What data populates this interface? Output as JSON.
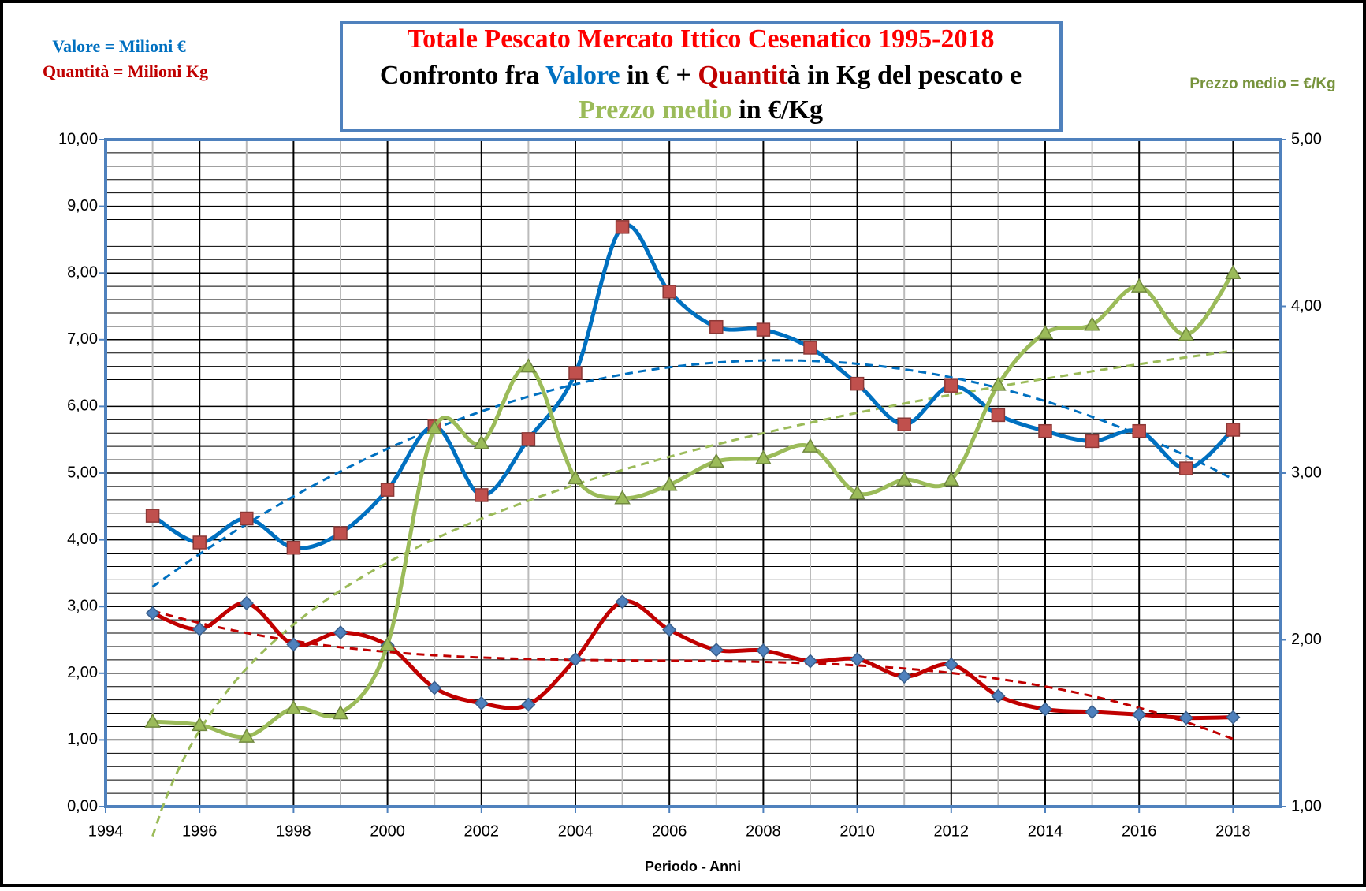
{
  "chart_data": {
    "type": "line",
    "title_lines": [
      [
        {
          "text": "Totale Pescato Mercato Ittico Cesenatico 1995-2018",
          "color": "#ff0000"
        }
      ],
      [
        {
          "text": "Confronto fra ",
          "color": "#000000"
        },
        {
          "text": "Valore",
          "color": "#0070c0"
        },
        {
          "text": " in € + ",
          "color": "#000000"
        },
        {
          "text": "Quantit",
          "color": "#c00000"
        },
        {
          "text": "à in Kg del pescato e",
          "color": "#000000"
        }
      ],
      [
        {
          "text": "Prezzo medio",
          "color": "#9bbb59"
        },
        {
          "text": " in €/Kg",
          "color": "#000000"
        }
      ]
    ],
    "annotations": [
      {
        "text": "Valore = Milioni €",
        "color": "#0070c0"
      },
      {
        "text": "Quantità = Milioni Kg",
        "color": "#c00000"
      },
      {
        "text": "Prezzo medio = €/Kg",
        "color": "#77933c"
      }
    ],
    "x_label": "Periodo - Anni",
    "x": [
      1995,
      1996,
      1997,
      1998,
      1999,
      2000,
      2001,
      2002,
      2003,
      2004,
      2005,
      2006,
      2007,
      2008,
      2009,
      2010,
      2011,
      2012,
      2013,
      2014,
      2015,
      2016,
      2017,
      2018
    ],
    "xlim": [
      1994,
      2019
    ],
    "xticks": [
      1994,
      1996,
      1998,
      2000,
      2002,
      2004,
      2006,
      2008,
      2010,
      2012,
      2014,
      2016,
      2018
    ],
    "ylim": [
      0,
      10
    ],
    "yticks": [
      {
        "value": 0,
        "label": "0,00"
      },
      {
        "value": 1,
        "label": "1,00"
      },
      {
        "value": 2,
        "label": "2,00"
      },
      {
        "value": 3,
        "label": "3,00"
      },
      {
        "value": 4,
        "label": "4,00"
      },
      {
        "value": 5,
        "label": "5,00"
      },
      {
        "value": 6,
        "label": "6,00"
      },
      {
        "value": 7,
        "label": "7,00"
      },
      {
        "value": 8,
        "label": "8,00"
      },
      {
        "value": 9,
        "label": "9,00"
      },
      {
        "value": 10,
        "label": "10,00"
      }
    ],
    "y2lim": [
      1,
      5
    ],
    "y2ticks": [
      {
        "value": 1,
        "label": "1,00"
      },
      {
        "value": 2,
        "label": "2,00"
      },
      {
        "value": 3,
        "label": "3,00"
      },
      {
        "value": 4,
        "label": "4,00"
      },
      {
        "value": 5,
        "label": "5,00"
      }
    ],
    "grid": true,
    "series": [
      {
        "color": "#0070c0",
        "marker": "square",
        "marker_color": "#c0504d",
        "trendline": "poly2",
        "values": [
          4.36,
          3.96,
          4.32,
          3.88,
          4.1,
          4.75,
          5.7,
          4.67,
          5.51,
          6.5,
          8.69,
          7.72,
          7.19,
          7.15,
          6.88,
          6.34,
          5.73,
          6.31,
          5.87,
          5.63,
          5.48,
          5.63,
          5.07,
          5.65
        ]
      },
      {
        "color": "#c00000",
        "marker": "diamond",
        "marker_color": "#4f81bd",
        "trendline": "poly3",
        "values": [
          2.9,
          2.66,
          3.05,
          2.43,
          2.61,
          2.42,
          1.78,
          1.55,
          1.53,
          2.21,
          3.07,
          2.65,
          2.35,
          2.34,
          2.18,
          2.21,
          1.95,
          2.13,
          1.66,
          1.46,
          1.42,
          1.38,
          1.33,
          1.34
        ]
      },
      {
        "color": "#9bbb59",
        "marker": "triangle",
        "marker_color": "#9bbb59",
        "trendline": "log",
        "axis": "y2",
        "values": [
          1.51,
          1.49,
          1.42,
          1.59,
          1.56,
          1.97,
          3.27,
          3.18,
          3.64,
          2.97,
          2.85,
          2.93,
          3.07,
          3.09,
          3.16,
          2.88,
          2.96,
          2.96,
          3.53,
          3.84,
          3.89,
          4.12,
          3.83,
          4.2
        ]
      }
    ]
  }
}
